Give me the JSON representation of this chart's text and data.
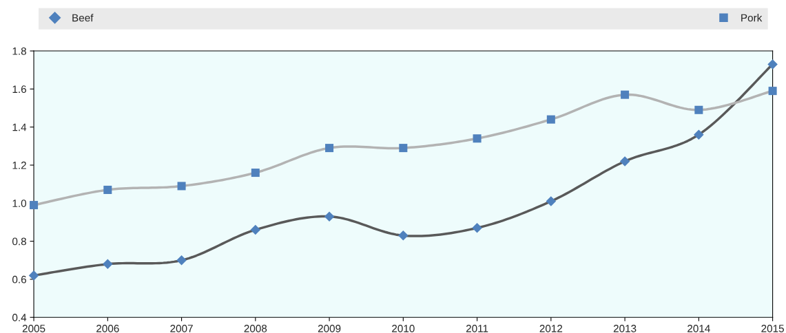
{
  "chart_data": {
    "type": "line",
    "x": [
      2005,
      2006,
      2007,
      2008,
      2009,
      2010,
      2011,
      2012,
      2013,
      2014,
      2015
    ],
    "series": [
      {
        "name": "Beef",
        "color": "#4f81bd",
        "marker": "diamond",
        "values": [
          0.62,
          0.68,
          0.7,
          0.86,
          0.93,
          0.83,
          0.87,
          1.01,
          1.22,
          1.36,
          1.73
        ]
      },
      {
        "name": "Pork",
        "color": "#4f81bd",
        "marker": "square",
        "values": [
          0.99,
          1.07,
          1.09,
          1.16,
          1.29,
          1.29,
          1.34,
          1.44,
          1.57,
          1.49,
          1.59
        ]
      }
    ],
    "xlim": [
      2005,
      2015
    ],
    "xticks": [
      2005,
      2006,
      2007,
      2008,
      2009,
      2010,
      2011,
      2012,
      2013,
      2014,
      2015
    ],
    "ylim": [
      0.4,
      1.8
    ],
    "yticks": [
      {
        "value": 0.4,
        "label": "0.4"
      },
      {
        "value": 0.6,
        "label": "0.6"
      },
      {
        "value": 0.8,
        "label": "0.8"
      },
      {
        "value": 1.0,
        "label": "1.0"
      },
      {
        "value": 1.2,
        "label": "1.2"
      },
      {
        "value": 1.4,
        "label": "1.4"
      },
      {
        "value": 1.6,
        "label": "1.6"
      },
      {
        "value": 1.8,
        "label": "1.8"
      }
    ],
    "grid": false,
    "legend": "top",
    "line_style": "solid"
  }
}
